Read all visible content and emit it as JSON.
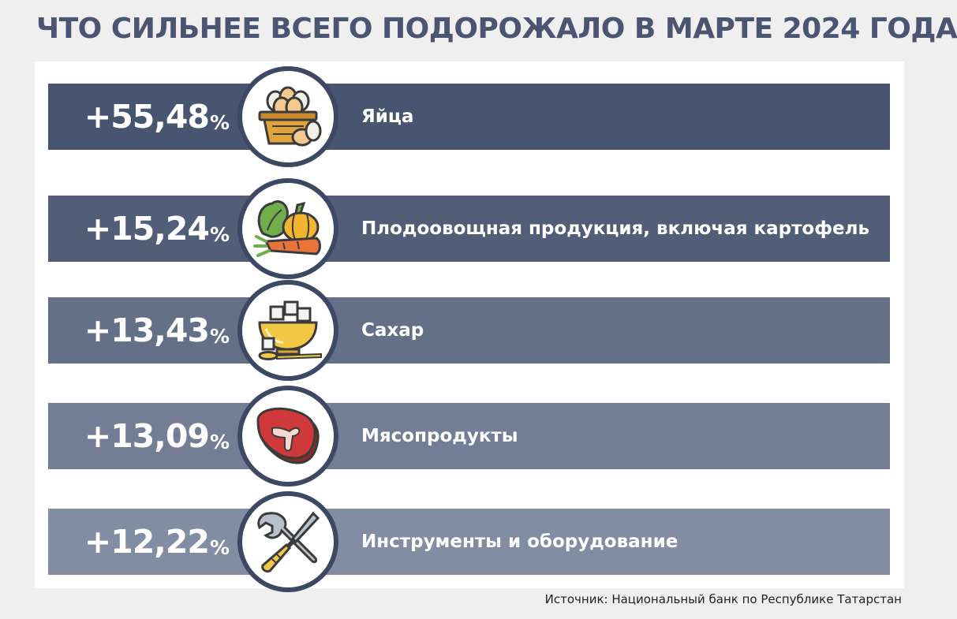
{
  "title": "ЧТО СИЛЬНЕЕ ВСЕГО ПОДОРОЖАЛО В МАРТЕ 2024 ГОДА",
  "source": "Источник: Национальный банк по Республике Татарстан",
  "percent_sign": "%",
  "chart_data": {
    "type": "bar",
    "title": "ЧТО СИЛЬНЕЕ ВСЕГО ПОДОРОЖАЛО В МАРТЕ 2024 ГОДА",
    "categories": [
      "Яйца",
      "Плодоовощная продукция, включая картофель",
      "Сахар",
      "Мясопродукты",
      "Инструменты и оборудование"
    ],
    "values": [
      55.48,
      15.24,
      13.43,
      13.09,
      12.22
    ],
    "value_labels": [
      "+55,48",
      "+15,24",
      "+13,43",
      "+13,09",
      "+12,22"
    ],
    "unit": "%",
    "icons": [
      "egg-basket-icon",
      "vegetables-icon",
      "sugar-bowl-icon",
      "meat-steak-icon",
      "tools-icon"
    ],
    "colors": [
      "#485570",
      "#525e78",
      "#646f88",
      "#737e96",
      "#828ca2"
    ]
  }
}
